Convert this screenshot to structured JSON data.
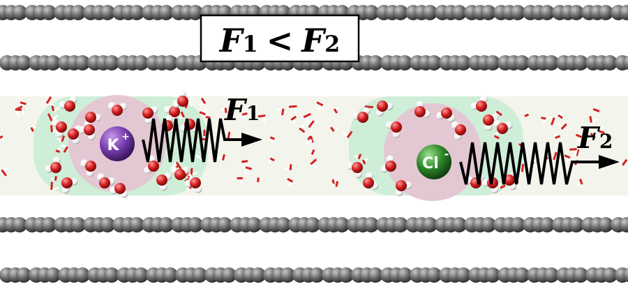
{
  "title": {
    "f1_symbol": "F",
    "f1_subscript": "1",
    "relation": "<",
    "f2_symbol": "F",
    "f2_subscript": "2"
  },
  "ions": [
    {
      "label": "K",
      "charge": "+",
      "color": "#7a3fb0",
      "force_symbol": "F",
      "force_subscript": "1"
    },
    {
      "label": "Cl",
      "charge": "-",
      "color": "#2f8a2a",
      "force_symbol": "F",
      "force_subscript": "2"
    }
  ],
  "colors": {
    "graphene_atom": "#6e6e6e",
    "channel_fill": "#f3f4ec",
    "outer_shell": "#cfeed8",
    "inner_shell": "#e3c8d4",
    "oxygen": "#d42020",
    "hydrogen": "#ffffff"
  }
}
